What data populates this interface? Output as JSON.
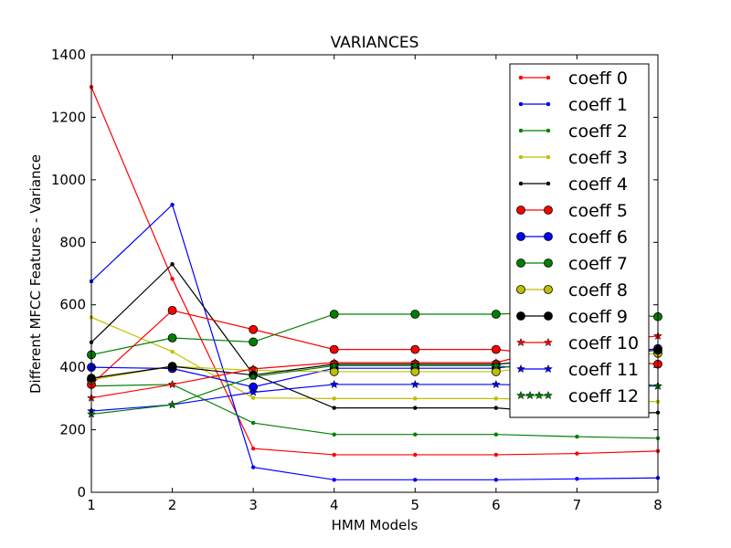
{
  "chart_data": {
    "type": "line",
    "title": "VARIANCES",
    "xlabel": "HMM Models",
    "ylabel": "Different MFCC Features - Variance",
    "xlim": [
      1,
      8
    ],
    "ylim": [
      0,
      1400
    ],
    "x_ticks": [
      1,
      2,
      3,
      4,
      5,
      6,
      7,
      8
    ],
    "y_ticks": [
      0,
      200,
      400,
      600,
      800,
      1000,
      1200,
      1400
    ],
    "grid": false,
    "legend_position": "top-right",
    "x": [
      1,
      2,
      3,
      4,
      5,
      6,
      7,
      8
    ],
    "series": [
      {
        "name": "coeff 0",
        "color": "#ff0000",
        "marker": "small-dot",
        "values": [
          1297,
          683,
          140,
          120,
          120,
          120,
          124,
          132
        ]
      },
      {
        "name": "coeff 1",
        "color": "#0000ff",
        "marker": "small-dot",
        "values": [
          675,
          920,
          80,
          40,
          40,
          40,
          43,
          46
        ]
      },
      {
        "name": "coeff 2",
        "color": "#008000",
        "marker": "small-dot",
        "values": [
          340,
          345,
          222,
          185,
          185,
          185,
          178,
          173
        ]
      },
      {
        "name": "coeff 3",
        "color": "#bfbf00",
        "marker": "small-dot",
        "values": [
          560,
          450,
          302,
          300,
          300,
          300,
          295,
          290
        ]
      },
      {
        "name": "coeff 4",
        "color": "#000000",
        "marker": "small-dot",
        "values": [
          480,
          730,
          378,
          270,
          270,
          270,
          250,
          255
        ]
      },
      {
        "name": "coeff 5",
        "color": "#ff0000",
        "marker": "circle",
        "values": [
          345,
          582,
          521,
          457,
          457,
          457,
          430,
          410
        ]
      },
      {
        "name": "coeff 6",
        "color": "#0000ff",
        "marker": "circle",
        "values": [
          400,
          396,
          337,
          397,
          397,
          397,
          430,
          460
        ]
      },
      {
        "name": "coeff 7",
        "color": "#008000",
        "marker": "circle",
        "values": [
          440,
          494,
          481,
          570,
          570,
          570,
          580,
          562
        ]
      },
      {
        "name": "coeff 8",
        "color": "#bfbf00",
        "marker": "circle",
        "values": [
          360,
          403,
          390,
          386,
          386,
          386,
          420,
          445
        ]
      },
      {
        "name": "coeff 9",
        "color": "#000000",
        "marker": "circle",
        "values": [
          365,
          403,
          375,
          410,
          410,
          410,
          430,
          455
        ]
      },
      {
        "name": "coeff 10",
        "color": "#ff0000",
        "marker": "star",
        "values": [
          302,
          345,
          395,
          415,
          415,
          415,
          480,
          500
        ]
      },
      {
        "name": "coeff 11",
        "color": "#0000ff",
        "marker": "star",
        "values": [
          260,
          280,
          320,
          345,
          345,
          345,
          340,
          340
        ]
      },
      {
        "name": "coeff 12",
        "color": "#008000",
        "marker": "star",
        "values": [
          250,
          280,
          370,
          405,
          405,
          405,
          380,
          340
        ]
      }
    ]
  }
}
